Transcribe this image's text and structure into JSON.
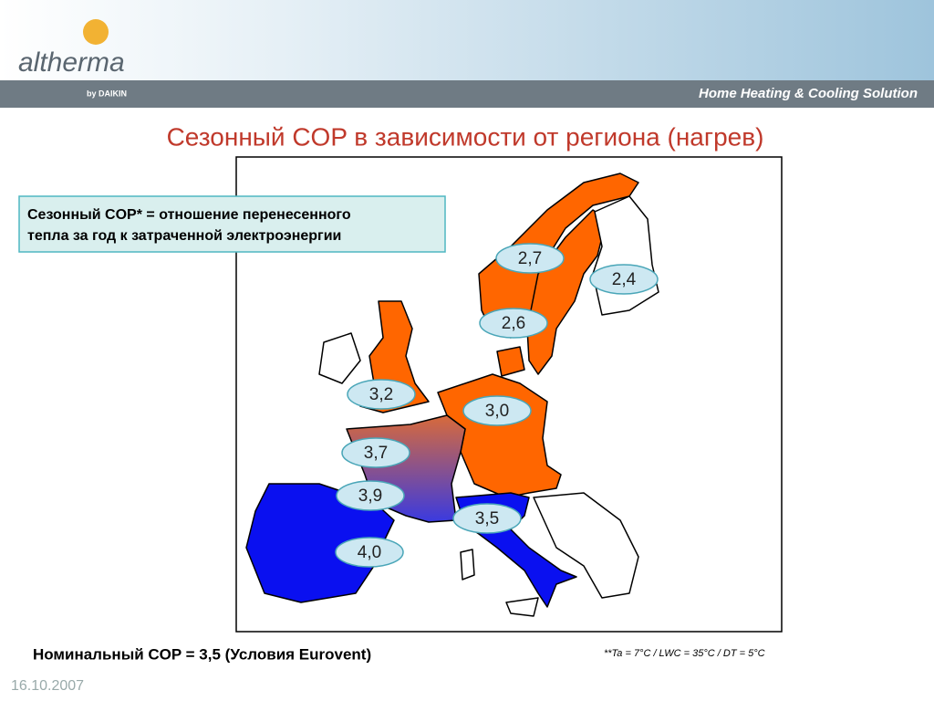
{
  "header": {
    "logo": "altherma",
    "by": "by DAIKIN",
    "tagline": "Home Heating & Cooling Solution"
  },
  "title": "Сезонный COP в зависимости от региона (нагрев)",
  "definition": [
    "Сезонный COP* = отношение перенесенного",
    "тепла за год к затраченной электроэнергии"
  ],
  "regions": [
    {
      "label": "2,7"
    },
    {
      "label": "2,4"
    },
    {
      "label": "2,6"
    },
    {
      "label": "3,2"
    },
    {
      "label": "3,0"
    },
    {
      "label": "3,7"
    },
    {
      "label": "3,9"
    },
    {
      "label": "3,5"
    },
    {
      "label": "4,0"
    }
  ],
  "nominal": "Номинальный COP = 3,5 (Условия Eurovent)",
  "note": "**Ta = 7°C   / LWC = 35°C / DT = 5°C",
  "date": "16.10.2007"
}
